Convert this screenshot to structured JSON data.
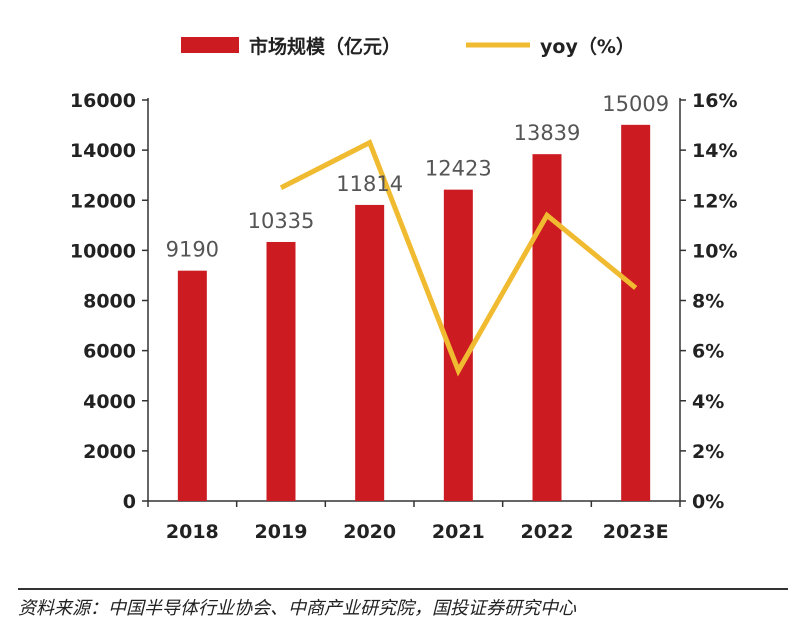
{
  "chart_data": {
    "type": "bar",
    "categories": [
      "2018",
      "2019",
      "2020",
      "2021",
      "2022",
      "2023E"
    ],
    "series": [
      {
        "name": "市场规模（亿元）",
        "kind": "bar",
        "axis": "left",
        "color": "#cc1c22",
        "values": [
          9190,
          10335,
          11814,
          12423,
          13839,
          15009
        ],
        "labels": [
          "9190",
          "10335",
          "11814",
          "12423",
          "13839",
          "15009"
        ]
      },
      {
        "name": "yoy（%）",
        "kind": "line",
        "axis": "right",
        "color": "#f0bb30",
        "values": [
          null,
          12.5,
          14.3,
          5.2,
          11.4,
          8.5
        ]
      }
    ],
    "y_left": {
      "ylim": [
        0,
        16000
      ],
      "ticks": [
        0,
        2000,
        4000,
        6000,
        8000,
        10000,
        12000,
        14000,
        16000
      ],
      "tick_labels": [
        "0",
        "2000",
        "4000",
        "6000",
        "8000",
        "10000",
        "12000",
        "14000",
        "16000"
      ]
    },
    "y_right": {
      "ylim": [
        0,
        16
      ],
      "ticks": [
        0,
        2,
        4,
        6,
        8,
        10,
        12,
        14,
        16
      ],
      "tick_labels": [
        "0%",
        "2%",
        "4%",
        "6%",
        "8%",
        "10%",
        "12%",
        "14%",
        "16%"
      ]
    },
    "legend_position": "top-center",
    "grid": false
  },
  "source_note": "资料来源：中国半导体行业协会、中商产业研究院，国投证券研究中心"
}
